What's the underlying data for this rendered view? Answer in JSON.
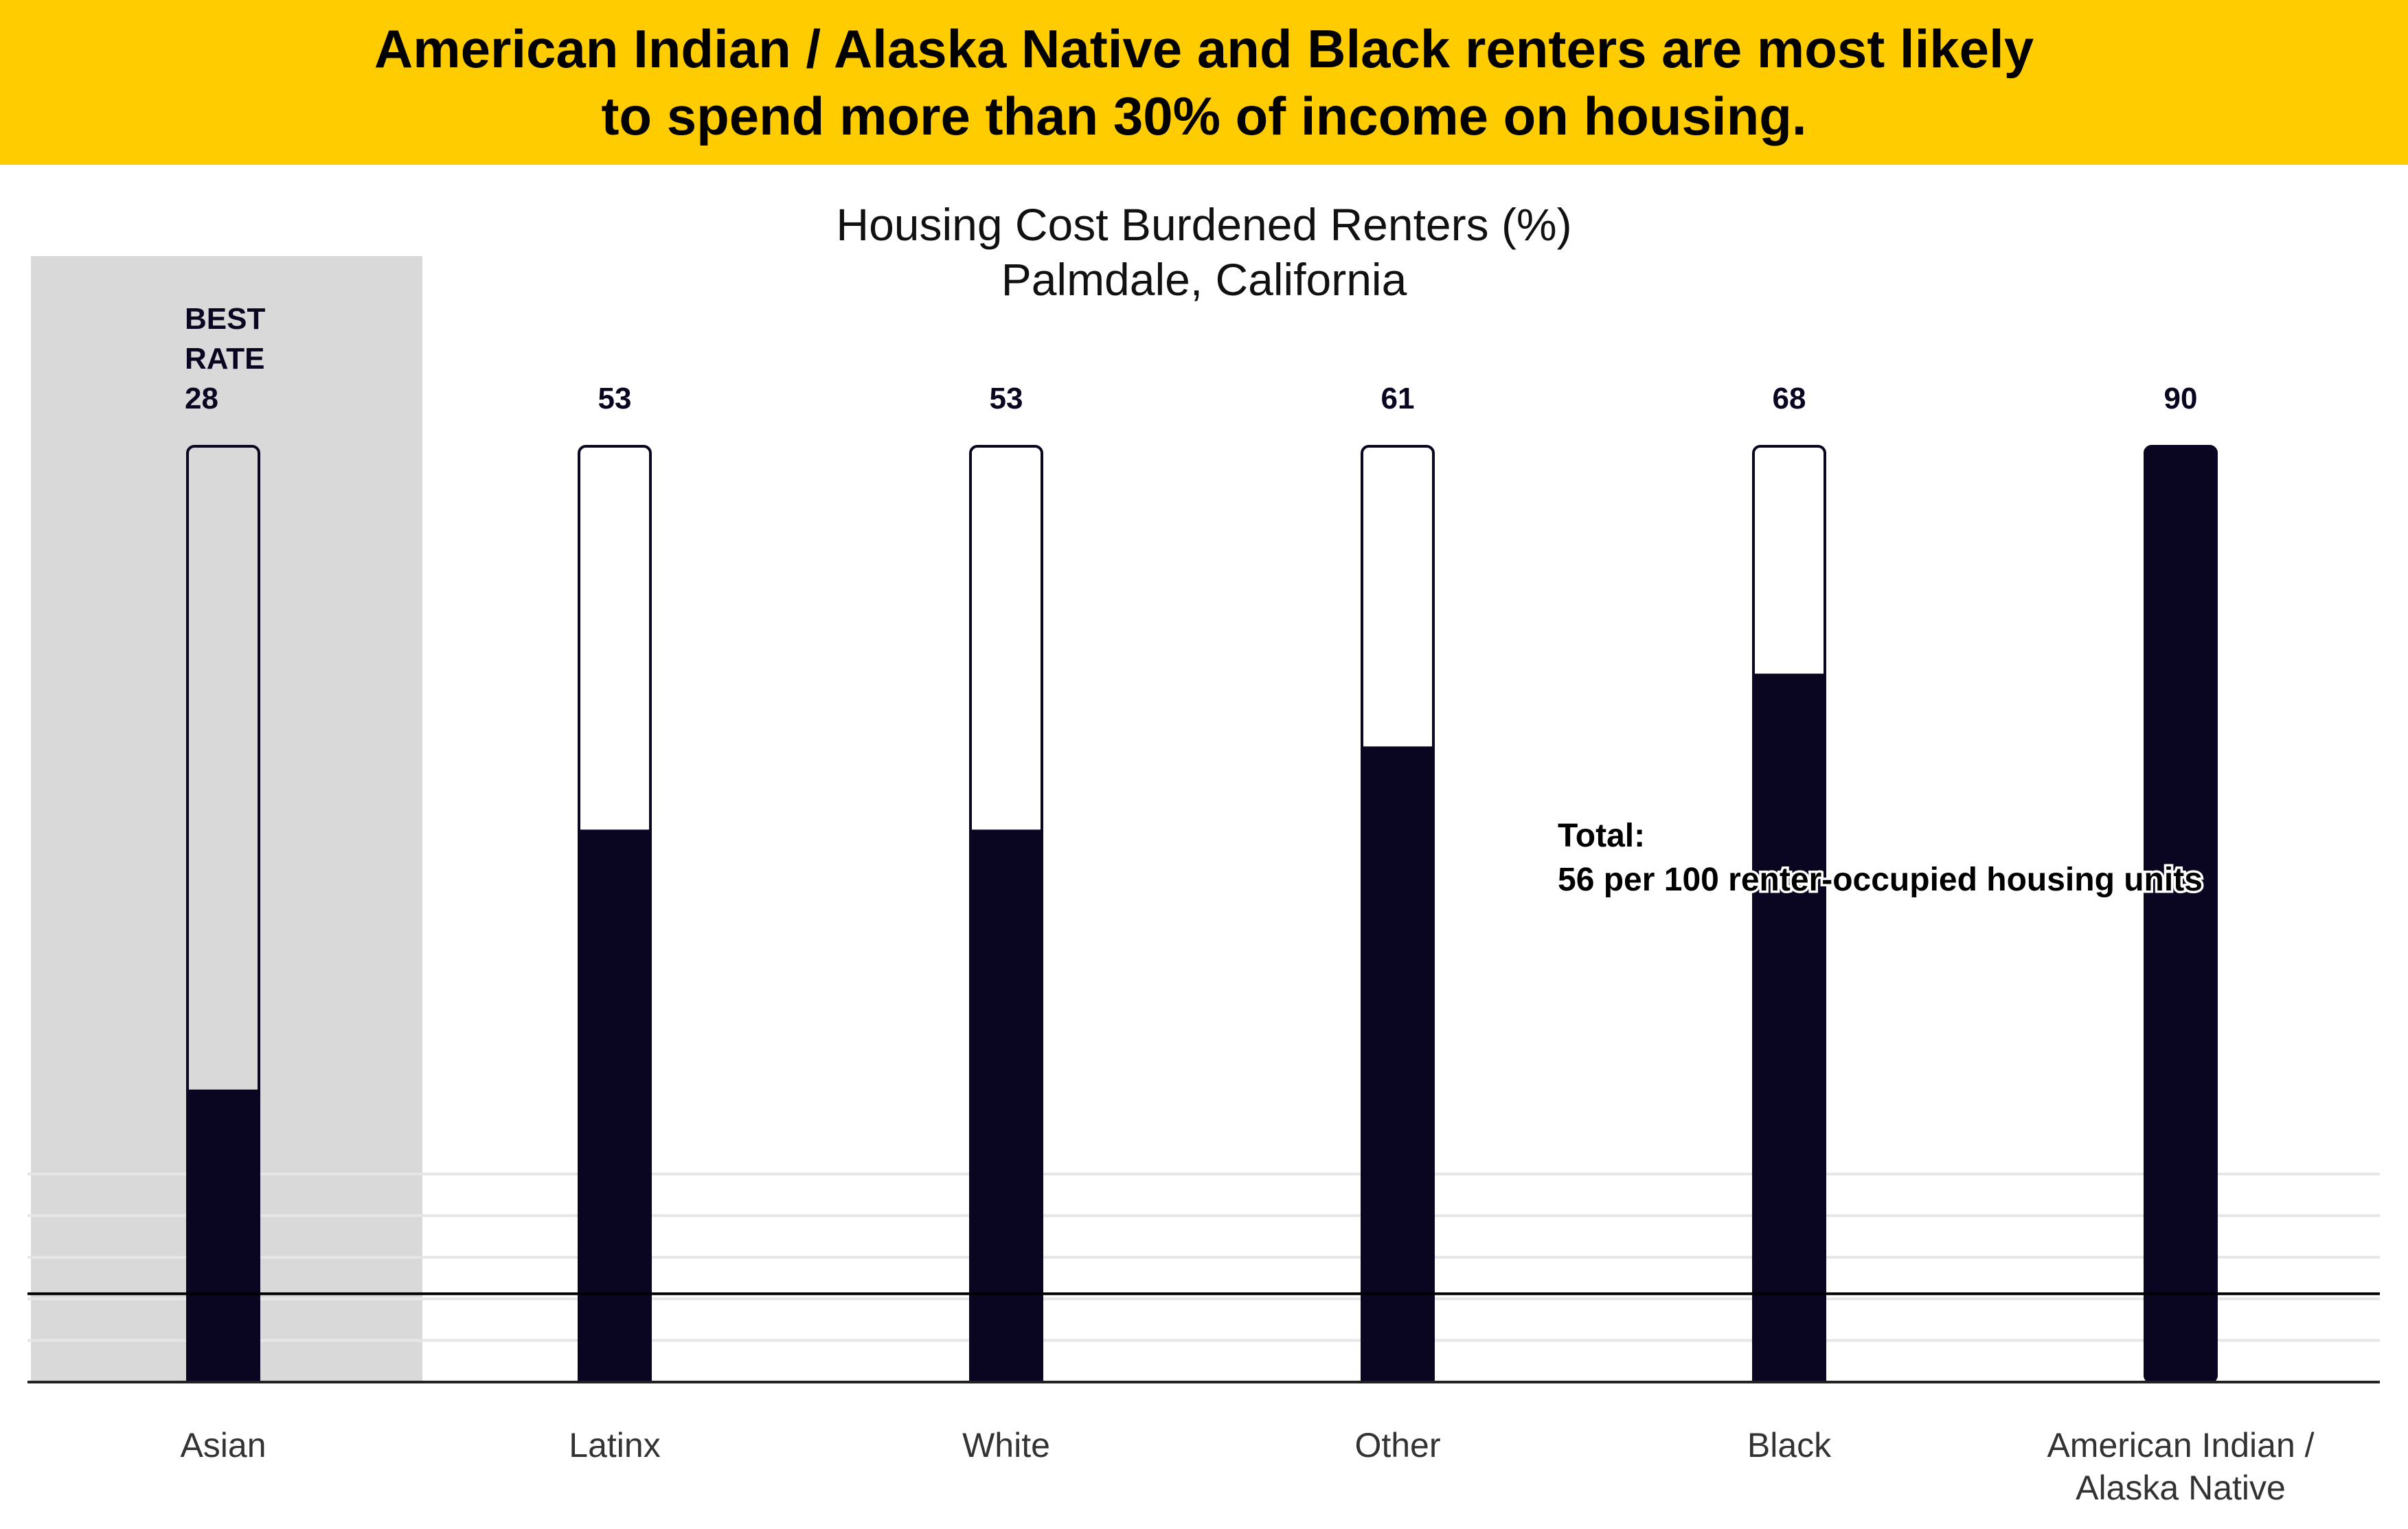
{
  "banner": {
    "line1": "American Indian / Alaska Native and Black renters are most likely",
    "line2": "to spend more than 30% of income on housing."
  },
  "chart_data": {
    "type": "bar",
    "title": "Housing Cost Burdened Renters (%)",
    "subtitle": "Palmdale, California",
    "categories": [
      "Asian",
      "Latinx",
      "White",
      "Other",
      "Black",
      "American Indian / Alaska Native"
    ],
    "category_lines": [
      [
        "Asian"
      ],
      [
        "Latinx"
      ],
      [
        "White"
      ],
      [
        "Other"
      ],
      [
        "Black"
      ],
      [
        "American Indian /",
        "Alaska Native"
      ]
    ],
    "values": [
      28,
      53,
      53,
      61,
      68,
      90
    ],
    "value_labels": [
      [
        "BEST",
        "RATE",
        "28"
      ],
      [
        "53"
      ],
      [
        "53"
      ],
      [
        "61"
      ],
      [
        "68"
      ],
      [
        "90"
      ]
    ],
    "highlight_category": "Asian",
    "ylim": [
      0,
      90
    ],
    "gridlines": [
      0,
      20,
      40,
      60,
      80,
      100
    ],
    "reference_line": {
      "value": 56,
      "label_line1": "Total:",
      "label_line2": "56 per 100 renter-occupied housing units"
    },
    "grid": true,
    "colors": {
      "bar_fill": "#0a0521",
      "bar_empty": "#ffffff",
      "highlight_band": "#d9d9d9",
      "banner": "#ffcc00",
      "gridline": "#e6e6e6"
    }
  }
}
